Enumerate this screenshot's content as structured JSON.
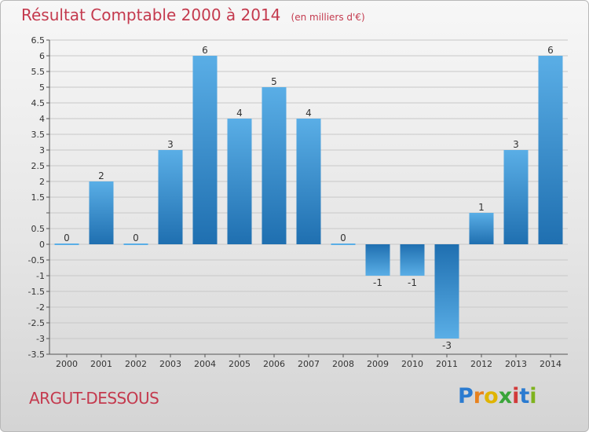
{
  "header": {
    "title": "Résultat Comptable 2000 à 2014",
    "subtitle": "(en milliers d'€)"
  },
  "footer": {
    "town": "ARGUT-DESSOUS",
    "logo_letters": [
      "P",
      "r",
      "o",
      "x",
      "i",
      "t",
      "i"
    ],
    "logo_colors": [
      "#2b7bd0",
      "#e8821e",
      "#e0b400",
      "#3aa53a",
      "#d13a3a",
      "#2b7bd0",
      "#7fb31e"
    ]
  },
  "chart_data": {
    "type": "bar",
    "categories": [
      "2000",
      "2001",
      "2002",
      "2003",
      "2004",
      "2005",
      "2006",
      "2007",
      "2008",
      "2009",
      "2010",
      "2011",
      "2012",
      "2013",
      "2014"
    ],
    "values": [
      0,
      2,
      0,
      3,
      6,
      4,
      5,
      4,
      0,
      -1,
      -1,
      -3,
      1,
      3,
      6
    ],
    "data_labels": [
      "0",
      "2",
      "0",
      "3",
      "6",
      "4",
      "5",
      "4",
      "0",
      "-1",
      "-1",
      "-3",
      "1",
      "3",
      "6"
    ],
    "yticks": [
      "6.5",
      "6",
      "5.5",
      "5",
      "4.5",
      "4",
      "3.5",
      "3",
      "2.5",
      "2",
      "1.5",
      "",
      "0.5",
      "0",
      "-0.5",
      "-1",
      "-1.5",
      "-2",
      "-2.5",
      "-3",
      "-3.5"
    ],
    "ylim": [
      -3.5,
      6.5
    ],
    "grid": true,
    "colors": {
      "bar_top": "#5aaee6",
      "bar_bottom": "#1f6fb0",
      "axis": "#555555",
      "grid": "#c8c8c8",
      "tick_text": "#333333"
    }
  }
}
